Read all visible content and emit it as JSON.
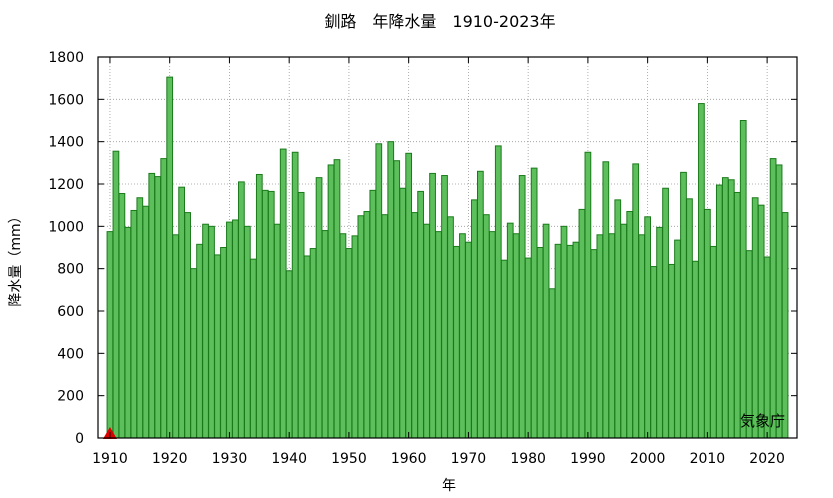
{
  "chart_data": {
    "type": "bar",
    "title": "釧路　年降水量　1910-2023年",
    "xlabel": "年",
    "ylabel": "降水量（mm）",
    "source_label": "気象庁",
    "xlim": [
      1908,
      2025
    ],
    "ylim": [
      0,
      1800
    ],
    "yticks": [
      0,
      200,
      400,
      600,
      800,
      1000,
      1200,
      1400,
      1600,
      1800
    ],
    "xticks": [
      1910,
      1920,
      1930,
      1940,
      1950,
      1960,
      1970,
      1980,
      1990,
      2000,
      2010,
      2020
    ],
    "grid": true,
    "bar_color": "#5cbf5c",
    "bar_edge_color": "#1a7a1a",
    "marker_color": "#dd0000",
    "marker": {
      "x": 1910,
      "y": 0,
      "shape": "triangle"
    },
    "x": [
      1910,
      1911,
      1912,
      1913,
      1914,
      1915,
      1916,
      1917,
      1918,
      1919,
      1920,
      1921,
      1922,
      1923,
      1924,
      1925,
      1926,
      1927,
      1928,
      1929,
      1930,
      1931,
      1932,
      1933,
      1934,
      1935,
      1936,
      1937,
      1938,
      1939,
      1940,
      1941,
      1942,
      1943,
      1944,
      1945,
      1946,
      1947,
      1948,
      1949,
      1950,
      1951,
      1952,
      1953,
      1954,
      1955,
      1956,
      1957,
      1958,
      1959,
      1960,
      1961,
      1962,
      1963,
      1964,
      1965,
      1966,
      1967,
      1968,
      1969,
      1970,
      1971,
      1972,
      1973,
      1974,
      1975,
      1976,
      1977,
      1978,
      1979,
      1980,
      1981,
      1982,
      1983,
      1984,
      1985,
      1986,
      1987,
      1988,
      1989,
      1990,
      1991,
      1992,
      1993,
      1994,
      1995,
      1996,
      1997,
      1998,
      1999,
      2000,
      2001,
      2002,
      2003,
      2004,
      2005,
      2006,
      2007,
      2008,
      2009,
      2010,
      2011,
      2012,
      2013,
      2014,
      2015,
      2016,
      2017,
      2018,
      2019,
      2020,
      2021,
      2022,
      2023
    ],
    "values": [
      975,
      1355,
      1155,
      995,
      1075,
      1135,
      1095,
      1250,
      1235,
      1320,
      1705,
      960,
      1185,
      1065,
      800,
      915,
      1010,
      1000,
      865,
      900,
      1020,
      1030,
      1210,
      1000,
      845,
      1245,
      1170,
      1165,
      1010,
      1365,
      790,
      1350,
      1160,
      860,
      895,
      1230,
      980,
      1290,
      1315,
      965,
      895,
      955,
      1050,
      1070,
      1170,
      1390,
      1055,
      1400,
      1310,
      1180,
      1345,
      1065,
      1165,
      1010,
      1250,
      975,
      1240,
      1045,
      905,
      965,
      925,
      1125,
      1260,
      1055,
      975,
      1380,
      840,
      1015,
      965,
      1240,
      850,
      1275,
      900,
      1010,
      705,
      915,
      1000,
      910,
      925,
      1080,
      1350,
      890,
      960,
      1305,
      965,
      1125,
      1010,
      1070,
      1295,
      960,
      1045,
      810,
      995,
      1180,
      820,
      935,
      1255,
      1130,
      835,
      1580,
      1080,
      905,
      1195,
      1230,
      1220,
      1160,
      1500,
      885,
      1135,
      1100,
      855,
      1320,
      1290,
      1065
    ]
  }
}
